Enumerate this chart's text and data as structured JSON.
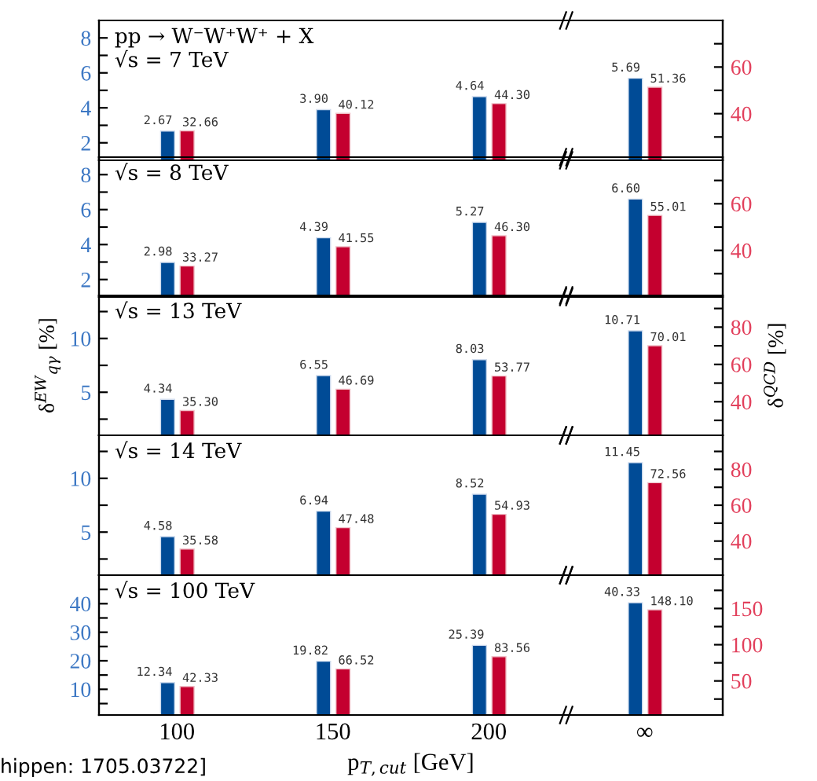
{
  "chart_data": [
    {
      "type": "bar",
      "categories": [
        null,
        null,
        null,
        null
      ],
      "tick_labels": "y",
      "annotations": [
        "pp → W⁻W⁺W⁺ + X",
        "√s = 7 TeV"
      ],
      "series": [
        {
          "color": "#004b96",
          "values": [
            2.67,
            3.9,
            4.64,
            5.69
          ],
          "value_labels": [
            "2.67",
            "3.90",
            "4.64",
            "5.69"
          ]
        },
        {
          "color": "#c4002f",
          "axis": "y2",
          "values": [
            32.66,
            40.12,
            44.3,
            51.36
          ],
          "value_labels": [
            "32.66",
            "40.12",
            "44.30",
            "51.36"
          ]
        }
      ],
      "ylim": [
        1,
        9
      ],
      "yticks": [
        2,
        {
          "value": 3,
          "label": null
        },
        4,
        {
          "value": 5,
          "label": null
        },
        6,
        {
          "value": 7,
          "label": null
        },
        8
      ],
      "y2lim": [
        20,
        80
      ],
      "y2ticks": [
        {
          "value": 30,
          "label": null
        },
        40,
        {
          "value": 50,
          "label": null
        },
        60,
        {
          "value": 70,
          "label": null
        }
      ]
    },
    {
      "type": "bar",
      "categories": [
        null,
        null,
        null,
        null
      ],
      "tick_labels": "y",
      "annotations": [
        "√s = 8 TeV"
      ],
      "series": [
        {
          "color": "#004b96",
          "values": [
            2.98,
            4.39,
            5.27,
            6.6
          ],
          "value_labels": [
            "2.98",
            "4.39",
            "5.27",
            "6.60"
          ]
        },
        {
          "color": "#c4002f",
          "axis": "y2",
          "values": [
            33.27,
            41.55,
            46.3,
            55.01
          ],
          "value_labels": [
            "33.27",
            "41.55",
            "46.30",
            "55.01"
          ]
        }
      ],
      "ylim": [
        1,
        9
      ],
      "yticks": [
        2,
        {
          "value": 3,
          "label": null
        },
        4,
        {
          "value": 5,
          "label": null
        },
        6,
        {
          "value": 7,
          "label": null
        },
        8
      ],
      "y2lim": [
        20,
        80
      ],
      "y2ticks": [
        {
          "value": 30,
          "label": null
        },
        40,
        {
          "value": 50,
          "label": null
        },
        60,
        {
          "value": 70,
          "label": null
        }
      ]
    },
    {
      "type": "bar",
      "categories": [
        null,
        null,
        null,
        null
      ],
      "tick_labels": "y",
      "annotations": [
        "√s = 13 TeV"
      ],
      "ylabel": "δ$^{EW}$$_{qγ}$ [%]",
      "y2label": "δ$^{QCD}$ [%]",
      "series": [
        {
          "color": "#004b96",
          "values": [
            4.34,
            6.55,
            8.03,
            10.71
          ],
          "value_labels": [
            "4.34",
            "6.55",
            "8.03",
            "10.71"
          ]
        },
        {
          "color": "#c4002f",
          "axis": "y2",
          "values": [
            35.3,
            46.69,
            53.77,
            70.01
          ],
          "value_labels": [
            "35.30",
            "46.69",
            "53.77",
            "70.01"
          ]
        }
      ],
      "ylim": [
        1,
        14
      ],
      "yticks": [
        {
          "value": 2.5,
          "label": null
        },
        5,
        {
          "value": 7.5,
          "label": null
        },
        10,
        {
          "value": 12.5,
          "label": null
        }
      ],
      "y2lim": [
        22,
        97
      ],
      "y2ticks": [
        {
          "value": 30,
          "label": null
        },
        40,
        {
          "value": 50,
          "label": null
        },
        60,
        {
          "value": 70,
          "label": null
        },
        80,
        {
          "value": 90,
          "label": null
        }
      ]
    },
    {
      "type": "bar",
      "categories": [
        null,
        null,
        null,
        null
      ],
      "tick_labels": "y",
      "annotations": [
        "√s = 14 TeV"
      ],
      "series": [
        {
          "color": "#004b96",
          "values": [
            4.58,
            6.94,
            8.52,
            11.45
          ],
          "value_labels": [
            "4.58",
            "6.94",
            "8.52",
            "11.45"
          ]
        },
        {
          "color": "#c4002f",
          "axis": "y2",
          "values": [
            35.58,
            47.48,
            54.93,
            72.56
          ],
          "value_labels": [
            "35.58",
            "47.48",
            "54.93",
            "72.56"
          ]
        }
      ],
      "ylim": [
        1,
        14
      ],
      "yticks": [
        {
          "value": 2.5,
          "label": null
        },
        5,
        {
          "value": 7.5,
          "label": null
        },
        10,
        {
          "value": 12.5,
          "label": null
        }
      ],
      "y2lim": [
        21,
        99
      ],
      "y2ticks": [
        {
          "value": 30,
          "label": null
        },
        40,
        {
          "value": 50,
          "label": null
        },
        60,
        {
          "value": 70,
          "label": null
        },
        80,
        {
          "value": 90,
          "label": null
        }
      ]
    },
    {
      "type": "bar",
      "categories": [
        "100",
        "150",
        "200",
        "∞"
      ],
      "annotations": [
        "√s = 100 TeV"
      ],
      "xlabel": "p$_{T,cut}$ [GeV]",
      "series": [
        {
          "color": "#004b96",
          "values": [
            12.34,
            19.82,
            25.39,
            40.33
          ],
          "value_labels": [
            "12.34",
            "19.82",
            "25.39",
            "40.33"
          ]
        },
        {
          "color": "#c4002f",
          "axis": "y2",
          "values": [
            42.33,
            66.52,
            83.56,
            148.1
          ],
          "value_labels": [
            "42.33",
            "66.52",
            "83.56",
            "148.10"
          ]
        }
      ],
      "ylim": [
        1,
        50
      ],
      "yticks": [
        {
          "value": 5,
          "label": null
        },
        10,
        {
          "value": 15,
          "label": null
        },
        20,
        {
          "value": 25,
          "label": null
        },
        30,
        {
          "value": 35,
          "label": null
        },
        40,
        {
          "value": 45,
          "label": null
        }
      ],
      "y2lim": [
        3,
        196
      ],
      "y2ticks": [
        {
          "value": 25,
          "label": null
        },
        50,
        {
          "value": 75,
          "label": null
        },
        100,
        {
          "value": 125,
          "label": null
        },
        150,
        {
          "value": 175,
          "label": null
        }
      ]
    },
    {
      "type": "other",
      "annotations": [
        "hippen: 1705.03722]"
      ]
    }
  ]
}
